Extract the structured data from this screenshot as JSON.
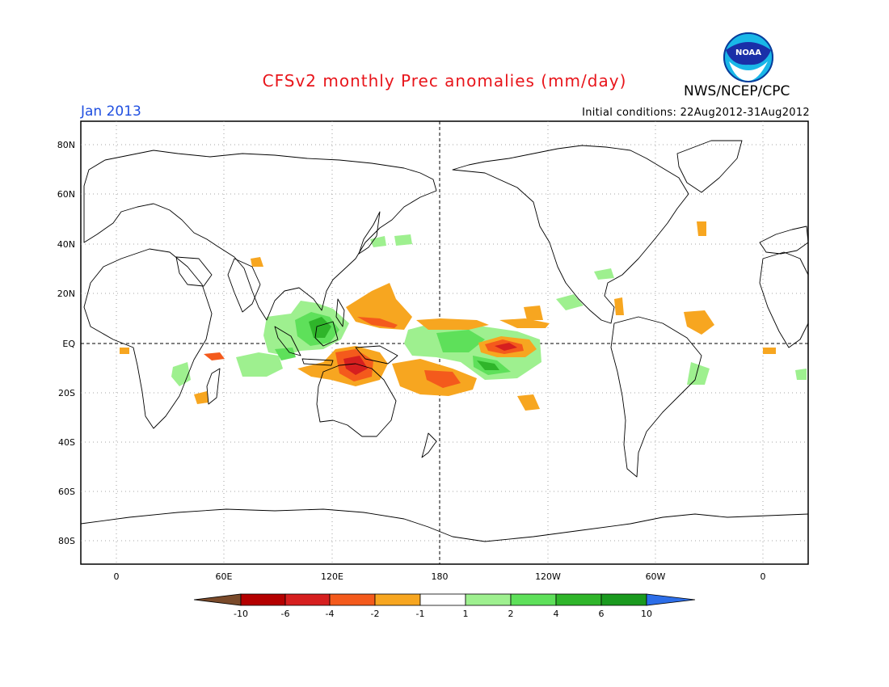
{
  "header": {
    "title": "CFSv2 monthly Prec anomalies (mm/day)",
    "period": "Jan 2013",
    "initial_conditions": "Initial conditions: 22Aug2012-31Aug2012",
    "agency": "NWS/NCEP/CPC",
    "logo_text": "NOAA"
  },
  "map": {
    "lat_labels": [
      "80N",
      "60N",
      "40N",
      "20N",
      "EQ",
      "20S",
      "40S",
      "60S",
      "80S"
    ],
    "lon_labels": [
      "0",
      "60E",
      "120E",
      "180",
      "120W",
      "60W",
      "0"
    ],
    "equator_label": "EQ",
    "dateline_label": "180"
  },
  "legend": {
    "tick_labels": [
      "-10",
      "-6",
      "-4",
      "-2",
      "-1",
      "1",
      "2",
      "4",
      "6",
      "10"
    ],
    "colors": {
      "lt_minus10": "#7a4a2a",
      "m10_m6": "#b40000",
      "m6_m4": "#d61f1f",
      "m4_m2": "#f45a1c",
      "m2_m1": "#f7a620",
      "m1_1": "#ffffff",
      "p1_p2": "#9ef08f",
      "p2_p4": "#5ee05a",
      "p4_p6": "#2fb52a",
      "p6_p10": "#1a9a1f",
      "gt_10": "#2d6ee8"
    }
  },
  "anomalies": [
    {
      "region": "Western Pacific warm pool",
      "sign": "wet",
      "level": "2 to 6"
    },
    {
      "region": "Maritime Continent / N Australia",
      "sign": "dry",
      "level": "-2 to -6"
    },
    {
      "region": "Central Pacific south of equator",
      "sign": "dry",
      "level": "-2 to -4"
    },
    {
      "region": "Central equatorial Pacific",
      "sign": "wet",
      "level": "1 to 4"
    },
    {
      "region": "NW Pacific 10-20N",
      "sign": "dry",
      "level": "-1 to -4"
    }
  ]
}
